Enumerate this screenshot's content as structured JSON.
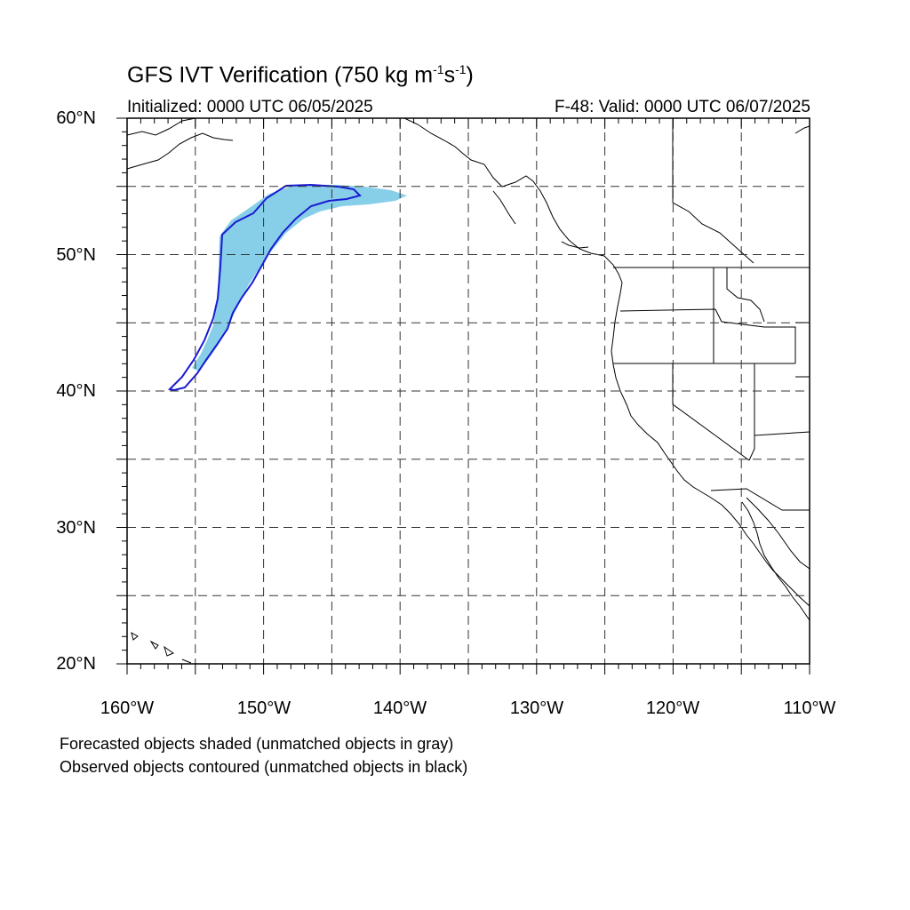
{
  "header": {
    "title_main": "GFS IVT Verification (750 kg m",
    "title_exp1": "-1",
    "title_mid": "s",
    "title_exp2": "-1",
    "title_end": ")",
    "initialized": "Initialized: 0000 UTC 06/05/2025",
    "valid": "F-48: Valid: 0000 UTC 06/07/2025"
  },
  "axes": {
    "lat_labels": [
      "60°N",
      "50°N",
      "40°N",
      "30°N",
      "20°N"
    ],
    "lon_labels": [
      "160°W",
      "150°W",
      "140°W",
      "130°W",
      "120°W",
      "110°W"
    ],
    "lat_range": [
      20,
      60
    ],
    "lon_range": [
      -160,
      -110
    ],
    "grid_spacing_deg": 5,
    "grid": true
  },
  "colors": {
    "forecast_fill": "#87cfe8",
    "observed_contour": "#1a1ad4",
    "coastline": "#000000",
    "grid": "#333333"
  },
  "legend": {
    "line1": "Forecasted objects shaded (unmatched objects in gray)",
    "line2": "Observed objects contoured (unmatched objects in black)"
  }
}
